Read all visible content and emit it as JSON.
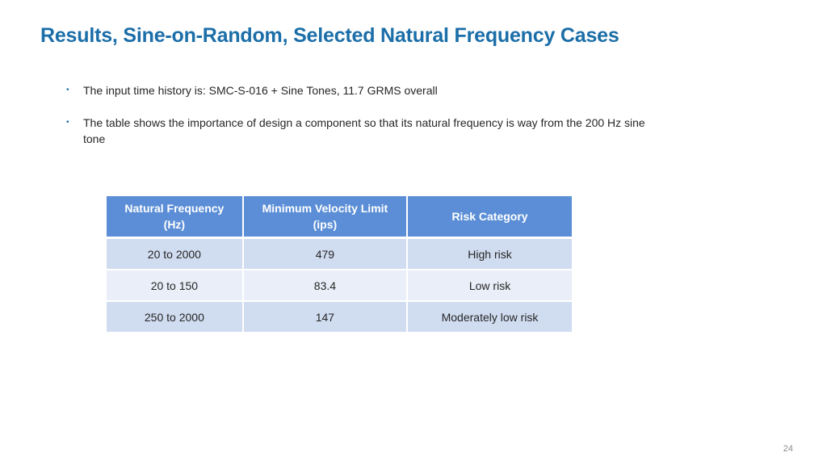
{
  "slide": {
    "title": "Results, Sine-on-Random, Selected Natural Frequency Cases",
    "page_number": "24"
  },
  "bullets": [
    {
      "text": "The input time history is:  SMC-S-016 + Sine Tones, 11.7 GRMS overall"
    },
    {
      "text": "The table shows the importance of design a component so that its natural frequency is way from the 200 Hz sine tone"
    }
  ],
  "table": {
    "headers": [
      {
        "line1": "Natural Frequency",
        "line2": "(Hz)"
      },
      {
        "line1": "Minimum Velocity Limit",
        "line2": "(ips)"
      },
      {
        "line1": "Risk Category",
        "line2": ""
      }
    ],
    "rows": [
      {
        "freq": "20 to 2000",
        "velocity": "479",
        "risk": "High risk"
      },
      {
        "freq": "20 to 150",
        "velocity": "83.4",
        "risk": "Low risk"
      },
      {
        "freq": "250 to 2000",
        "velocity": "147",
        "risk": "Moderately low risk"
      }
    ]
  },
  "colors": {
    "title": "#1b6ea8",
    "header_bg": "#5b8ed6",
    "row_dark": "#d0dcf0",
    "row_light": "#e9eef8"
  }
}
